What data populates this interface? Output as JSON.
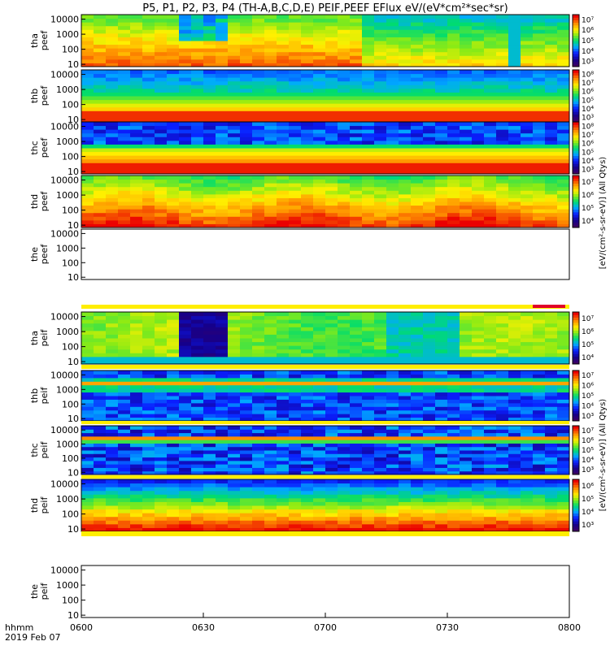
{
  "title": "P5, P1, P2, P3, P4 (TH-A,B,C,D,E) PEIF,PEEF EFlux eV/(eV*cm²*sec*sr)",
  "x_axis": {
    "label_line1": "hhmm",
    "label_line2": "2019 Feb 07",
    "ticks": [
      "0600",
      "0630",
      "0700",
      "0730",
      "0800"
    ]
  },
  "colorbar_label_electron": "[eV/(cm²-s-sr-eV)] (All Qtys)",
  "colorbar_label_ion": "[eV/(cm²-s-sr-eV)] (All Qtys)",
  "chart_data": {
    "type": "heatmap",
    "x_range": [
      "06:00",
      "08:00"
    ],
    "y_scale": "log",
    "colormap": "rainbow (purple-blue-green-yellow-red)",
    "panels": [
      {
        "label": [
          "tha",
          "peef"
        ],
        "yticks": [
          "10",
          "100",
          "1000",
          "10000"
        ],
        "ylim": [
          7,
          20000
        ],
        "colorbar_ticks": [
          "10³",
          "10⁴",
          "10⁵",
          "10⁶",
          "10⁷"
        ],
        "has_data": true,
        "species": "electron",
        "pattern": "tha_e"
      },
      {
        "label": [
          "thb",
          "peef"
        ],
        "yticks": [
          "10",
          "100",
          "1000",
          "10000"
        ],
        "ylim": [
          7,
          20000
        ],
        "colorbar_ticks": [
          "10³",
          "10⁴",
          "10⁵",
          "10⁶",
          "10⁷",
          "10⁸"
        ],
        "has_data": true,
        "species": "electron",
        "pattern": "band_high"
      },
      {
        "label": [
          "thc",
          "peef"
        ],
        "yticks": [
          "10",
          "100",
          "1000",
          "10000"
        ],
        "ylim": [
          7,
          20000
        ],
        "colorbar_ticks": [
          "10³",
          "10⁴",
          "10⁵",
          "10⁶",
          "10⁷",
          "10⁸"
        ],
        "has_data": true,
        "species": "electron",
        "pattern": "band_high2"
      },
      {
        "label": [
          "thd",
          "peef"
        ],
        "yticks": [
          "10",
          "100",
          "1000",
          "10000"
        ],
        "ylim": [
          7,
          20000
        ],
        "colorbar_ticks": [
          "10⁴",
          "10⁵",
          "10⁶",
          "10⁷"
        ],
        "has_data": true,
        "species": "electron",
        "pattern": "thd_e"
      },
      {
        "label": [
          "the",
          "peef"
        ],
        "yticks": [
          "10",
          "100",
          "1000",
          "10000"
        ],
        "ylim": [
          7,
          20000
        ],
        "colorbar_ticks": [],
        "has_data": false,
        "species": "electron",
        "pattern": "none"
      },
      {
        "label": [
          "tha",
          "peif"
        ],
        "yticks": [
          "10",
          "100",
          "1000",
          "10000"
        ],
        "ylim": [
          7,
          20000
        ],
        "colorbar_ticks": [
          "10⁴",
          "10⁵",
          "10⁶",
          "10⁷"
        ],
        "has_data": true,
        "species": "ion",
        "pattern": "tha_i"
      },
      {
        "label": [
          "thb",
          "peif"
        ],
        "yticks": [
          "10",
          "100",
          "1000",
          "10000"
        ],
        "ylim": [
          7,
          20000
        ],
        "colorbar_ticks": [
          "10³",
          "10⁴",
          "10⁵",
          "10⁶",
          "10⁷"
        ],
        "has_data": true,
        "species": "ion",
        "pattern": "thb_i"
      },
      {
        "label": [
          "thc",
          "peif"
        ],
        "yticks": [
          "10",
          "100",
          "1000",
          "10000"
        ],
        "ylim": [
          7,
          20000
        ],
        "colorbar_ticks": [
          "10³",
          "10⁴",
          "10⁵",
          "10⁶",
          "10⁷"
        ],
        "has_data": true,
        "species": "ion",
        "pattern": "thc_i"
      },
      {
        "label": [
          "thd",
          "peif"
        ],
        "yticks": [
          "10",
          "100",
          "1000",
          "10000"
        ],
        "ylim": [
          7,
          20000
        ],
        "colorbar_ticks": [
          "10³",
          "10⁴",
          "10⁵",
          "10⁶"
        ],
        "has_data": true,
        "species": "ion",
        "pattern": "thd_i"
      },
      {
        "label": [
          "the",
          "peif"
        ],
        "yticks": [
          "10",
          "100",
          "1000",
          "10000"
        ],
        "ylim": [
          7,
          20000
        ],
        "colorbar_ticks": [],
        "has_data": false,
        "species": "ion",
        "pattern": "none"
      }
    ]
  }
}
